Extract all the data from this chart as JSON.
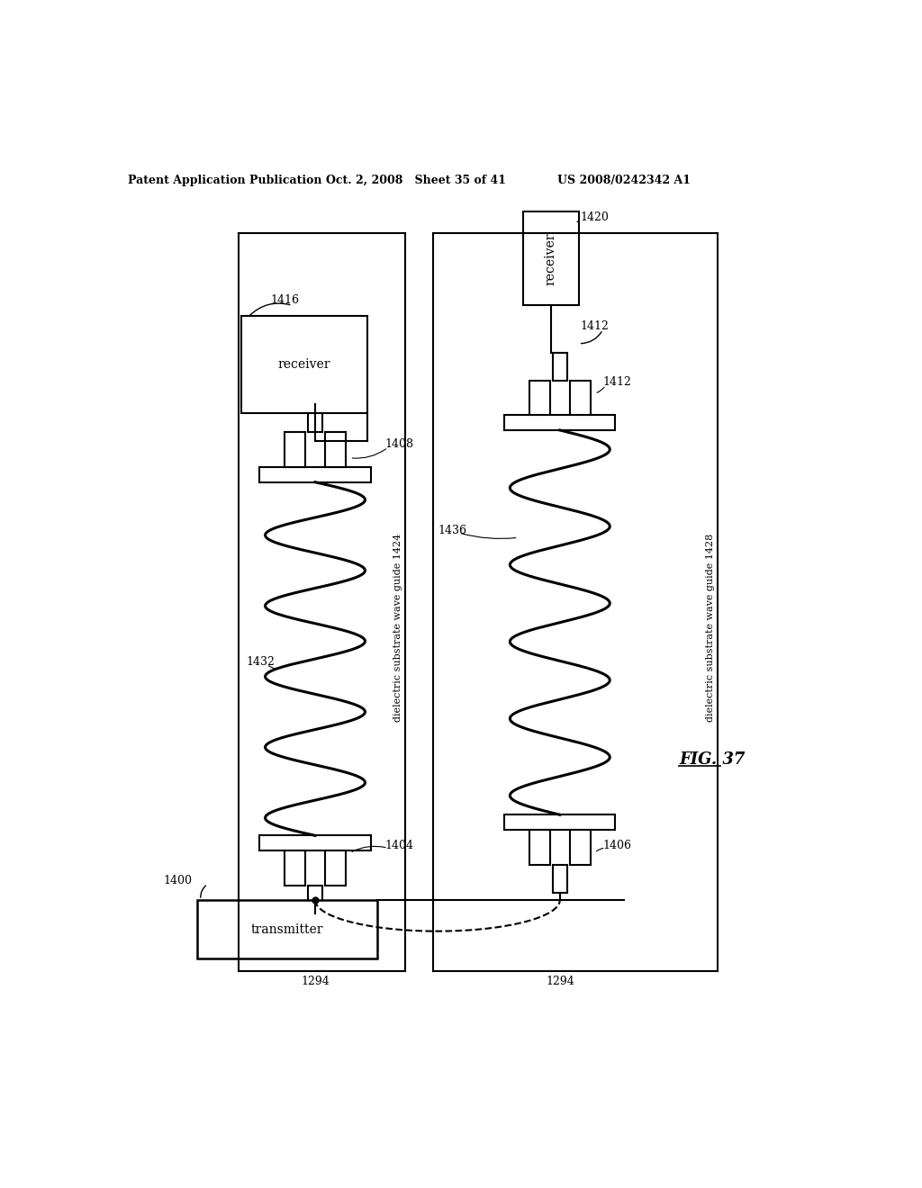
{
  "bg_color": "#ffffff",
  "line_color": "#000000",
  "header_text_left": "Patent Application Publication",
  "header_text_mid": "Oct. 2, 2008   Sheet 35 of 41",
  "header_text_right": "US 2008/0242342 A1",
  "fig_label": "FIG. 37"
}
